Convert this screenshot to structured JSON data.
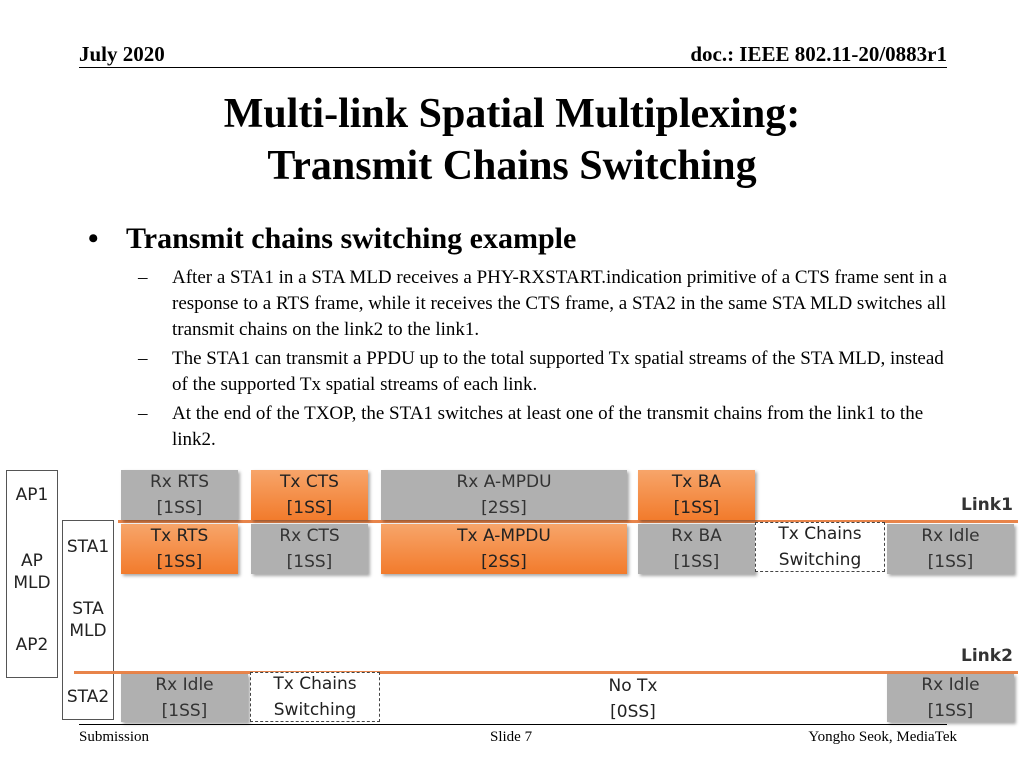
{
  "header": {
    "date": "July 2020",
    "doc": "doc.: IEEE 802.11-20/0883r1"
  },
  "title": {
    "line1": "Multi-link Spatial Multiplexing:",
    "line2": "Transmit Chains Switching"
  },
  "bullet": {
    "marker": "•",
    "text": "Transmit chains switching example"
  },
  "subbullets": [
    {
      "marker": "–",
      "text": "After a STA1 in a STA MLD receives a PHY-RXSTART.indication primitive of a CTS frame sent in a response to a RTS frame, while it receives the CTS frame, a STA2 in the same STA MLD switches all transmit chains on the link2 to the link1."
    },
    {
      "marker": "–",
      "text": "The STA1 can transmit a PPDU up to the total supported Tx spatial streams of the STA MLD, instead of the supported Tx spatial streams of each link."
    },
    {
      "marker": "–",
      "text": "At the end of the TXOP, the STA1 switches at least one of the transmit chains from the link1 to the link2."
    }
  ],
  "diagram": {
    "labels": {
      "ap1": "AP1",
      "ap_mld_1": "AP",
      "ap_mld_2": "MLD",
      "ap2": "AP2",
      "sta1": "STA1",
      "sta_mld_1": "STA",
      "sta_mld_2": "MLD",
      "sta2": "STA2",
      "link1": "Link1",
      "link2": "Link2"
    },
    "ap1_row": [
      {
        "l1": "Rx RTS",
        "l2": "[1SS]",
        "style": "gray"
      },
      {
        "l1": "Tx CTS",
        "l2": "[1SS]",
        "style": "orange"
      },
      {
        "l1": "Rx A-MPDU",
        "l2": "[2SS]",
        "style": "gray"
      },
      {
        "l1": "Tx BA",
        "l2": "[1SS]",
        "style": "orange"
      }
    ],
    "sta1_row": [
      {
        "l1": "Tx RTS",
        "l2": "[1SS]",
        "style": "orange"
      },
      {
        "l1": "Rx CTS",
        "l2": "[1SS]",
        "style": "gray"
      },
      {
        "l1": "Tx A-MPDU",
        "l2": "[2SS]",
        "style": "orange"
      },
      {
        "l1": "Rx BA",
        "l2": "[1SS]",
        "style": "gray"
      },
      {
        "l1": "Tx Chains",
        "l2": "Switching",
        "style": "dashed"
      },
      {
        "l1": "Rx Idle",
        "l2": "[1SS]",
        "style": "gray"
      }
    ],
    "sta2_row": [
      {
        "l1": "Rx Idle",
        "l2": "[1SS]",
        "style": "gray"
      },
      {
        "l1": "Tx Chains",
        "l2": "Switching",
        "style": "dashed"
      },
      {
        "l1": "No Tx",
        "l2": "[0SS]",
        "style": "nobg"
      },
      {
        "l1": "Rx Idle",
        "l2": "[1SS]",
        "style": "gray"
      }
    ]
  },
  "footer": {
    "left": "Submission",
    "center": "Slide 7",
    "right": "Yongho Seok, MediaTek"
  }
}
